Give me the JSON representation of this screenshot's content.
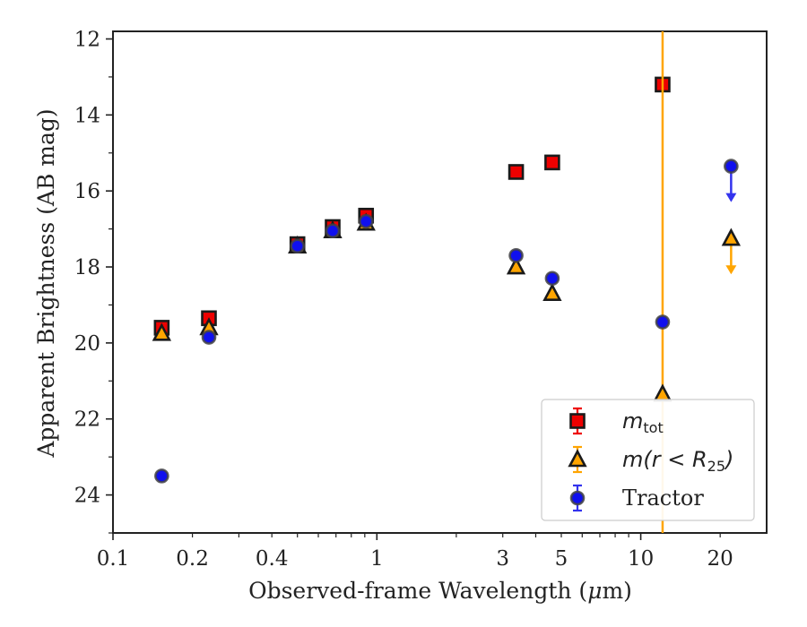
{
  "chart_data": {
    "type": "scatter",
    "xscale": "log",
    "yaxis_inverted": true,
    "xlim": [
      0.1,
      30
    ],
    "ylim": [
      25,
      11.8
    ],
    "xlabel_prefix": "Observed-frame Wavelength (",
    "xlabel_mu": "μ",
    "xlabel_suffix": "m)",
    "ylabel": "Apparent Brightness (AB mag)",
    "x_ticks": [
      {
        "value": 0.1,
        "label": "0.1"
      },
      {
        "value": 0.2,
        "label": "0.2"
      },
      {
        "value": 0.4,
        "label": "0.4"
      },
      {
        "value": 1,
        "label": "1"
      },
      {
        "value": 3,
        "label": "3"
      },
      {
        "value": 5,
        "label": "5"
      },
      {
        "value": 10,
        "label": "10"
      },
      {
        "value": 20,
        "label": "20"
      }
    ],
    "y_ticks": [
      {
        "value": 12,
        "label": "12"
      },
      {
        "value": 14,
        "label": "14"
      },
      {
        "value": 16,
        "label": "16"
      },
      {
        "value": 18,
        "label": "18"
      },
      {
        "value": 20,
        "label": "20"
      },
      {
        "value": 22,
        "label": "22"
      },
      {
        "value": 24,
        "label": "24"
      }
    ],
    "legend_placement": "lower-right",
    "series": [
      {
        "key": "mtot",
        "marker": "square",
        "color": "#ee0000",
        "errcolor": "#ee0000",
        "points": [
          {
            "x": 0.153,
            "y": 19.6
          },
          {
            "x": 0.231,
            "y": 19.35
          },
          {
            "x": 0.5,
            "y": 17.4
          },
          {
            "x": 0.68,
            "y": 16.95
          },
          {
            "x": 0.91,
            "y": 16.65
          },
          {
            "x": 3.37,
            "y": 15.5
          },
          {
            "x": 4.62,
            "y": 15.25
          },
          {
            "x": 12.1,
            "y": 13.2
          }
        ]
      },
      {
        "key": "mr25",
        "marker": "triangle",
        "color": "#ffa500",
        "errcolor": "#ffa500",
        "points": [
          {
            "x": 0.153,
            "y": 19.75
          },
          {
            "x": 0.231,
            "y": 19.6
          },
          {
            "x": 0.5,
            "y": 17.45
          },
          {
            "x": 0.68,
            "y": 17.05
          },
          {
            "x": 0.91,
            "y": 16.85
          },
          {
            "x": 3.37,
            "y": 18.0
          },
          {
            "x": 4.62,
            "y": 18.7
          },
          {
            "x": 12.1,
            "y": 21.35,
            "vertical_error_line": true
          },
          {
            "x": 22.0,
            "y": 17.25,
            "upper_limit": true
          }
        ]
      },
      {
        "key": "tractor",
        "marker": "circle",
        "color": "#1010ee",
        "errcolor": "#3333ee",
        "points": [
          {
            "x": 0.153,
            "y": 23.5
          },
          {
            "x": 0.231,
            "y": 19.85
          },
          {
            "x": 0.5,
            "y": 17.45
          },
          {
            "x": 0.68,
            "y": 17.05
          },
          {
            "x": 0.91,
            "y": 16.8
          },
          {
            "x": 3.37,
            "y": 17.7
          },
          {
            "x": 4.62,
            "y": 18.3
          },
          {
            "x": 12.1,
            "y": 19.45
          },
          {
            "x": 22.0,
            "y": 15.35,
            "upper_limit": true
          }
        ]
      }
    ],
    "legend": [
      {
        "key": "mtot",
        "marker": "square",
        "label_main": "m",
        "label_sub": "tot",
        "style": "math"
      },
      {
        "key": "mr25",
        "marker": "triangle",
        "label_main": "m(r < R",
        "label_sub": "25",
        "label_tail": ")",
        "style": "math"
      },
      {
        "key": "tractor",
        "marker": "circle",
        "label_main": "Tractor",
        "style": "serif"
      }
    ]
  }
}
